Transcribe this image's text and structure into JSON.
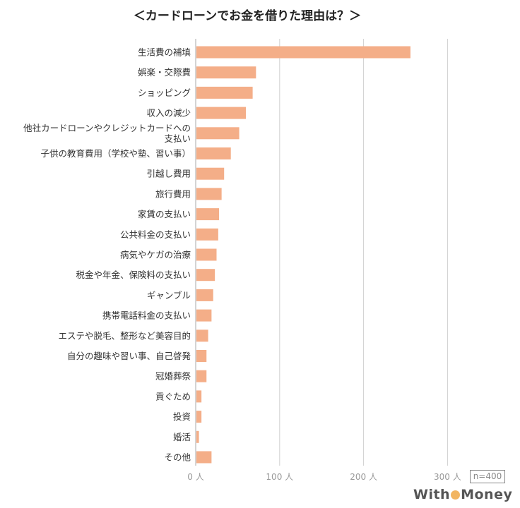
{
  "chart_data": {
    "type": "bar",
    "orientation": "horizontal",
    "title": "＜カードローンでお金を借りた理由は？＞",
    "categories": [
      "生活費の補填",
      "娯楽・交際費",
      "ショッピング",
      "収入の減少",
      "他社カードローンやクレジットカードへの\n支払い",
      "子供の教育費用（学校や塾、習い事）",
      "引越し費用",
      "旅行費用",
      "家賃の支払い",
      "公共料金の支払い",
      "病気やケガの治療",
      "税金や年金、保険料の支払い",
      "ギャンブル",
      "携帯電話料金の支払い",
      "エステや脱毛、整形など美容目的",
      "自分の趣味や習い事、自己啓発",
      "冠婚葬祭",
      "貢ぐため",
      "投資",
      "婚活",
      "その他"
    ],
    "values": [
      255,
      71,
      67,
      59,
      51,
      41,
      33,
      30,
      27,
      26,
      24,
      22,
      20,
      18,
      14,
      12,
      12,
      6,
      6,
      3,
      18
    ],
    "xlim": [
      0,
      350
    ],
    "xticks": [
      0,
      100,
      200,
      300
    ],
    "xtick_labels": [
      "0 人",
      "100 人",
      "200 人",
      "300 人"
    ],
    "grid": true,
    "bar_color": "#f4ae88",
    "annotation": "n=400"
  },
  "branding": {
    "logo": "WithMoney"
  }
}
